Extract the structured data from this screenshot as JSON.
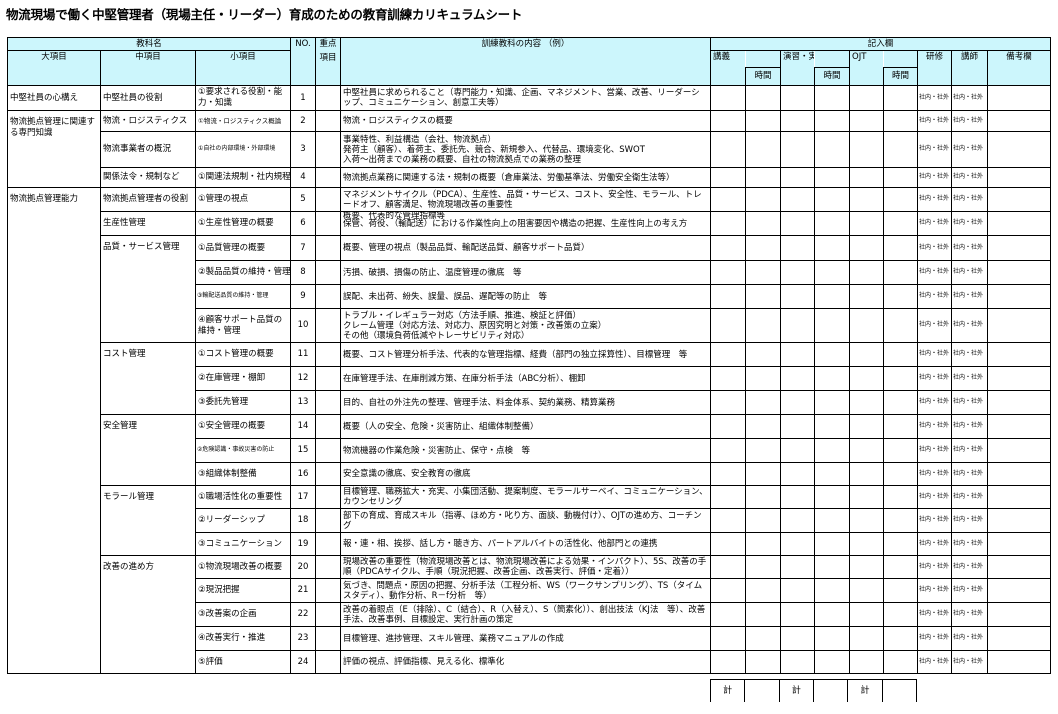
{
  "title": "物流現場で働く中堅管理者（現場主任・リーダー）育成のための教育訓練カリキュラムシート",
  "header": {
    "subject_name": "教科名",
    "dai": "大項目",
    "chu": "中項目",
    "sho": "小項目",
    "no": "NO.",
    "juten_1": "重点",
    "juten_2": "項目",
    "content": "訓練教科の内容 （例）",
    "kinyu": "記入欄",
    "kougi": "講義",
    "enshu": "演習・実習",
    "ojt": "OJT",
    "jikan": "時間",
    "kenshu": "研修",
    "koushi": "講師",
    "bikou": "備考欄"
  },
  "choice_label": "社内・社外",
  "groups_dai": [
    {
      "label": "中堅社員の心構え",
      "span": 1
    },
    {
      "label": "物流拠点管理に関連する専門知識",
      "span": 3
    },
    {
      "label": "物流拠点管理能力",
      "span": 20
    }
  ],
  "groups_chu": [
    {
      "label": "中堅社員の役割",
      "span": 1
    },
    {
      "label": "物流・ロジスティクス",
      "span": 1
    },
    {
      "label": "物流事業者の概況",
      "span": 1
    },
    {
      "label": "関係法令・規制など",
      "span": 1
    },
    {
      "label": "物流拠点管理者の役割",
      "span": 1
    },
    {
      "label": "生産性管理",
      "span": 1
    },
    {
      "label": "品質・サービス管理",
      "span": 4
    },
    {
      "label": "コスト管理",
      "span": 3
    },
    {
      "label": "安全管理",
      "span": 3
    },
    {
      "label": "モラール管理",
      "span": 3
    },
    {
      "label": "改善の進め方",
      "span": 5
    }
  ],
  "rows": [
    {
      "sho": "①要求される役割・能力・知識",
      "no": "1",
      "content": "中堅社員に求められること（専門能力・知識、企画、マネジメント、営業、改善、リーダーシップ、コミュニケーション、創意工夫等）"
    },
    {
      "sho": "①物流・ロジスティクス概論",
      "no": "2",
      "content": "物流・ロジスティクスの概要"
    },
    {
      "sho": "①自社の内部環境・外部環境",
      "no": "3",
      "content": "事業特性、利益構造（会社、物流拠点）\n発荷主（顧客）、着荷主、委託先、競合、新規参入、代替品、環境変化、SWOT\n入荷～出荷までの業務の概要、自社の物流拠点での業務の整理"
    },
    {
      "sho": "①関連法規制・社内規程",
      "no": "4",
      "content": "物流拠点業務に関連する法・規制の概要（倉庫業法、労働基準法、労働安全衛生法等）"
    },
    {
      "sho": "①管理の視点",
      "no": "5",
      "content": "マネジメントサイクル（PDCA）、生産性、品質・サービス、コスト、安全性、モラール、トレードオフ、顧客満足、物流現場改善の重要性"
    },
    {
      "sho": "①生産性管理の概要",
      "no": "6",
      "content": "概要、代表的な管理指標等\n保管、荷役、（輸配送）における作業性向上の阻害要因や構造の把握、生産性向上の考え方"
    },
    {
      "sho": "①品質管理の概要",
      "no": "7",
      "content": "概要、管理の視点（製品品質、輸配送品質、顧客サポート品質）"
    },
    {
      "sho": "②製品品質の維持・管理",
      "no": "8",
      "content": "汚損、破損、損傷の防止、温度管理の徹底　等"
    },
    {
      "sho": "③輸配送品質の維持・管理",
      "no": "9",
      "content": "誤配、未出荷、紛失、誤量、誤品、遅配等の防止　等"
    },
    {
      "sho": "④顧客サポート品質の維持・管理",
      "no": "10",
      "content": "トラブル・イレギュラー対応（方法手順、推進、検証と評価）\nクレーム管理（対応方法、対応力、原因究明と対策・改善策の立案）\nその他（環境負荷低減やトレーサビリティ対応）"
    },
    {
      "sho": "①コスト管理の概要",
      "no": "11",
      "content": "概要、コスト管理分析手法、代表的な管理指標、経費（部門の独立採算性）、目標管理　等"
    },
    {
      "sho": "②在庫管理・棚卸",
      "no": "12",
      "content": "在庫管理手法、在庫削減方策、在庫分析手法（ABC分析）、棚卸"
    },
    {
      "sho": "③委託先管理",
      "no": "13",
      "content": "目的、自社の外注先の整理、管理手法、料金体系、契約業務、精算業務"
    },
    {
      "sho": "①安全管理の概要",
      "no": "14",
      "content": "概要（人の安全、危険・災害防止、組織体制整備）"
    },
    {
      "sho": "②危険認識・事故災害の防止",
      "no": "15",
      "content": "物流機器の作業危険・災害防止、保守・点検　等"
    },
    {
      "sho": "③組織体制整備",
      "no": "16",
      "content": "安全意識の徹底、安全教育の徹底"
    },
    {
      "sho": "①職場活性化の重要性",
      "no": "17",
      "content": "目標管理、職務拡大・充実、小集団活動、提案制度、モラールサーベイ、コミュニケーション、カウンセリング"
    },
    {
      "sho": "②リーダーシップ",
      "no": "18",
      "content": "部下の育成、育成スキル（指導、ほめ方・叱り方、面談、動機付け）、OJTの進め方、コーチング"
    },
    {
      "sho": "③コミュニケーション",
      "no": "19",
      "content": "報・連・相、挨拶、話し方・聴き方、パートアルバイトの活性化、他部門との連携"
    },
    {
      "sho": "①物流現場改善の概要",
      "no": "20",
      "content": "現場改善の重要性（物流現場改善とは、物流現場改善による効果・インパクト）、5S、改善の手順（PDCAサイクル、手順（現況把握、改善企画、改善実行、評価・定着））"
    },
    {
      "sho": "②現況把握",
      "no": "21",
      "content": "気づき、問題点・原因の把握、分析手法（工程分析、WS（ワークサンプリング）、TS（タイムスタディ）、動作分析、R－f分析　等）"
    },
    {
      "sho": "③改善案の企画",
      "no": "22",
      "content": "改善の着眼点（E（排除）、C（結合）、R（入替え）、S（簡素化））、創出技法（KJ法　等）、改善手法、改善事例、目標設定、実行計画の策定"
    },
    {
      "sho": "④改善実行・推進",
      "no": "23",
      "content": "目標管理、進捗管理、スキル管理、業務マニュアルの作成"
    },
    {
      "sho": "⑤評価",
      "no": "24",
      "content": "評価の視点、評価指標、見える化、標準化"
    }
  ],
  "totals": {
    "label": "計"
  },
  "colors": {
    "header_bg": "#ccf6fc",
    "border": "#000000"
  }
}
